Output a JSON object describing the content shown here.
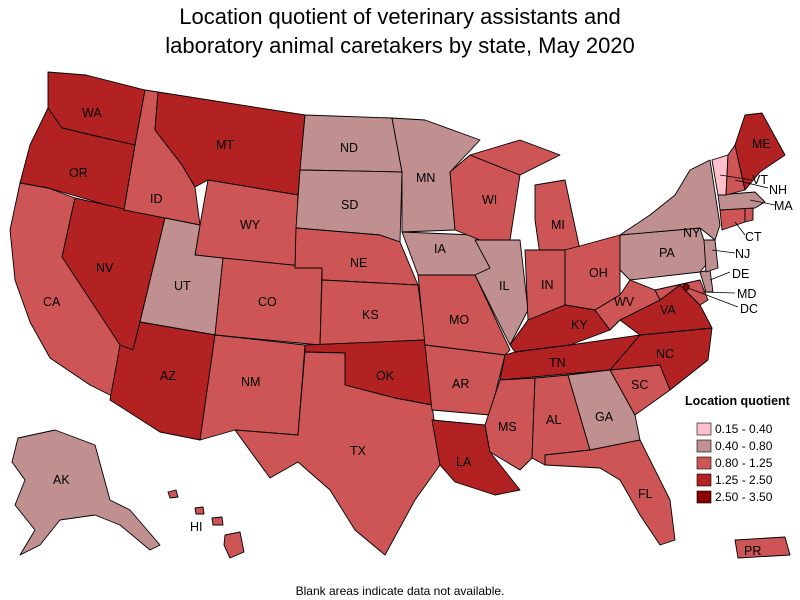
{
  "title_line1": "Location quotient of veterinary assistants and",
  "title_line2": "laboratory animal caretakers by state, May 2020",
  "footnote": "Blank areas indicate data not available.",
  "legend": {
    "title": "Location quotient",
    "bins": [
      {
        "label": "0.15 - 0.40",
        "color": "#ffc0cb"
      },
      {
        "label": "0.40 - 0.80",
        "color": "#c09090"
      },
      {
        "label": "0.80 - 1.25",
        "color": "#cd5555"
      },
      {
        "label": "1.25 - 2.50",
        "color": "#b22222"
      },
      {
        "label": "2.50 - 3.50",
        "color": "#8b0000"
      }
    ]
  },
  "states": {
    "WA": {
      "label": "WA",
      "bin": 3
    },
    "OR": {
      "label": "OR",
      "bin": 3
    },
    "CA": {
      "label": "CA",
      "bin": 2
    },
    "NV": {
      "label": "NV",
      "bin": 3
    },
    "ID": {
      "label": "ID",
      "bin": 2
    },
    "MT": {
      "label": "MT",
      "bin": 3
    },
    "WY": {
      "label": "WY",
      "bin": 2
    },
    "UT": {
      "label": "UT",
      "bin": 1
    },
    "AZ": {
      "label": "AZ",
      "bin": 3
    },
    "CO": {
      "label": "CO",
      "bin": 2
    },
    "NM": {
      "label": "NM",
      "bin": 2
    },
    "ND": {
      "label": "ND",
      "bin": 1
    },
    "SD": {
      "label": "SD",
      "bin": 1
    },
    "NE": {
      "label": "NE",
      "bin": 2
    },
    "KS": {
      "label": "KS",
      "bin": 2
    },
    "OK": {
      "label": "OK",
      "bin": 3
    },
    "TX": {
      "label": "TX",
      "bin": 2
    },
    "MN": {
      "label": "MN",
      "bin": 1
    },
    "IA": {
      "label": "IA",
      "bin": 1
    },
    "MO": {
      "label": "MO",
      "bin": 2
    },
    "AR": {
      "label": "AR",
      "bin": 2
    },
    "LA": {
      "label": "LA",
      "bin": 3
    },
    "WI": {
      "label": "WI",
      "bin": 2
    },
    "IL": {
      "label": "IL",
      "bin": 1
    },
    "MI": {
      "label": "MI",
      "bin": 2
    },
    "IN": {
      "label": "IN",
      "bin": 2
    },
    "OH": {
      "label": "OH",
      "bin": 2
    },
    "KY": {
      "label": "KY",
      "bin": 3
    },
    "TN": {
      "label": "TN",
      "bin": 3
    },
    "MS": {
      "label": "MS",
      "bin": 2
    },
    "AL": {
      "label": "AL",
      "bin": 2
    },
    "GA": {
      "label": "GA",
      "bin": 1
    },
    "FL": {
      "label": "FL",
      "bin": 2
    },
    "SC": {
      "label": "SC",
      "bin": 2
    },
    "NC": {
      "label": "NC",
      "bin": 3
    },
    "VA": {
      "label": "VA",
      "bin": 3
    },
    "WV": {
      "label": "WV",
      "bin": 2
    },
    "PA": {
      "label": "PA",
      "bin": 1
    },
    "NY": {
      "label": "NY",
      "bin": 1
    },
    "ME": {
      "label": "ME",
      "bin": 3
    },
    "VT": {
      "label": "VT",
      "bin": 0
    },
    "NH": {
      "label": "NH",
      "bin": 2
    },
    "MA": {
      "label": "MA",
      "bin": 1
    },
    "CT": {
      "label": "CT",
      "bin": 2
    },
    "NJ": {
      "label": "NJ",
      "bin": 1
    },
    "DE": {
      "label": "DE",
      "bin": 1
    },
    "MD": {
      "label": "MD",
      "bin": 2
    },
    "DC": {
      "label": "DC",
      "bin": 4
    },
    "RI": {
      "label": "",
      "bin": 2
    },
    "AK": {
      "label": "AK",
      "bin": 1
    },
    "HI": {
      "label": "HI",
      "bin": 2
    },
    "PR": {
      "label": "PR",
      "bin": 2
    }
  }
}
